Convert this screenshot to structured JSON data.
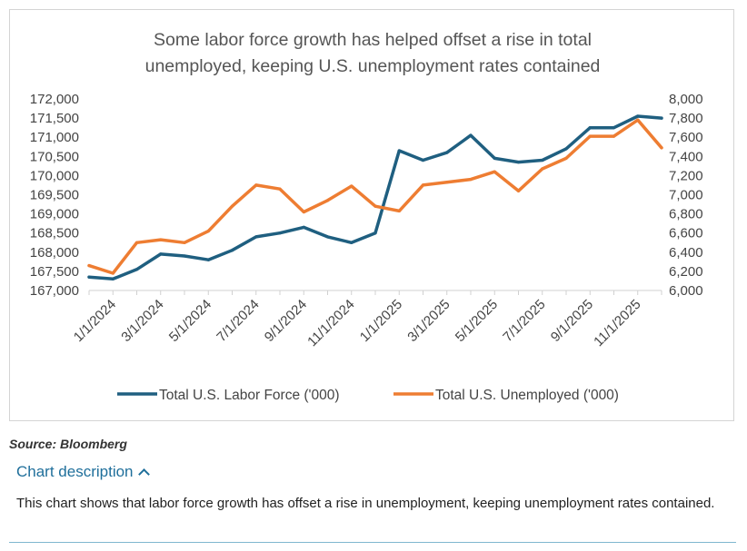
{
  "chart_data": {
    "type": "line",
    "title": "Some labor force growth has helped offset a rise in total unemployed, keeping U.S. unemployment rates contained",
    "title_lines": [
      "Some labor force growth has helped offset a rise in total",
      "unemployed, keeping U.S. unemployment rates contained"
    ],
    "x": [
      "12/1/2023",
      "1/1/2024",
      "2/1/2024",
      "3/1/2024",
      "4/1/2024",
      "5/1/2024",
      "6/1/2024",
      "7/1/2024",
      "8/1/2024",
      "9/1/2024",
      "10/1/2024",
      "11/1/2024",
      "12/1/2024",
      "1/1/2025",
      "2/1/2025",
      "3/1/2025",
      "4/1/2025",
      "5/1/2025",
      "6/1/2025",
      "7/1/2025",
      "8/1/2025",
      "9/1/2025",
      "10/1/2025",
      "11/1/2025",
      "12/1/2025"
    ],
    "x_tick_labels": [
      "1/1/2024",
      "3/1/2024",
      "5/1/2024",
      "7/1/2024",
      "9/1/2024",
      "11/1/2024",
      "1/1/2025",
      "3/1/2025",
      "5/1/2025",
      "7/1/2025",
      "9/1/2025",
      "11/1/2025"
    ],
    "series": [
      {
        "name": "Total U.S. Labor Force ('000)",
        "axis": "left",
        "color": "#1f5f80",
        "values": [
          167350,
          167300,
          167550,
          167950,
          167900,
          167800,
          168050,
          168400,
          168500,
          168650,
          168400,
          168250,
          168500,
          170650,
          170400,
          170600,
          171050,
          170450,
          170350,
          170400,
          170700,
          171250,
          171250,
          171550,
          171500
        ]
      },
      {
        "name": "Total U.S. Unemployed ('000)",
        "axis": "right",
        "color": "#ee7d32",
        "values": [
          6260,
          6180,
          6500,
          6530,
          6500,
          6620,
          6880,
          7100,
          7060,
          6820,
          6940,
          7090,
          6880,
          6830,
          7100,
          7130,
          7160,
          7240,
          7040,
          7270,
          7380,
          7610,
          7610,
          7780,
          7490
        ]
      }
    ],
    "left_axis": {
      "ylim": [
        167000,
        172000
      ],
      "ticks": [
        "167,000",
        "167,500",
        "168,000",
        "168,500",
        "169,000",
        "169,500",
        "170,000",
        "170,500",
        "171,000",
        "171,500",
        "172,000"
      ]
    },
    "right_axis": {
      "ylim": [
        6000,
        8000
      ],
      "ticks": [
        "6,000",
        "6,200",
        "6,400",
        "6,600",
        "6,800",
        "7,000",
        "7,200",
        "7,400",
        "7,600",
        "7,800",
        "8,000"
      ]
    },
    "legend_position": "bottom",
    "grid": false
  },
  "source": "Source: Bloomberg",
  "description": {
    "toggle_label": "Chart description",
    "text": "This chart shows that labor force growth has offset a rise in unemployment, keeping unemployment rates contained."
  }
}
